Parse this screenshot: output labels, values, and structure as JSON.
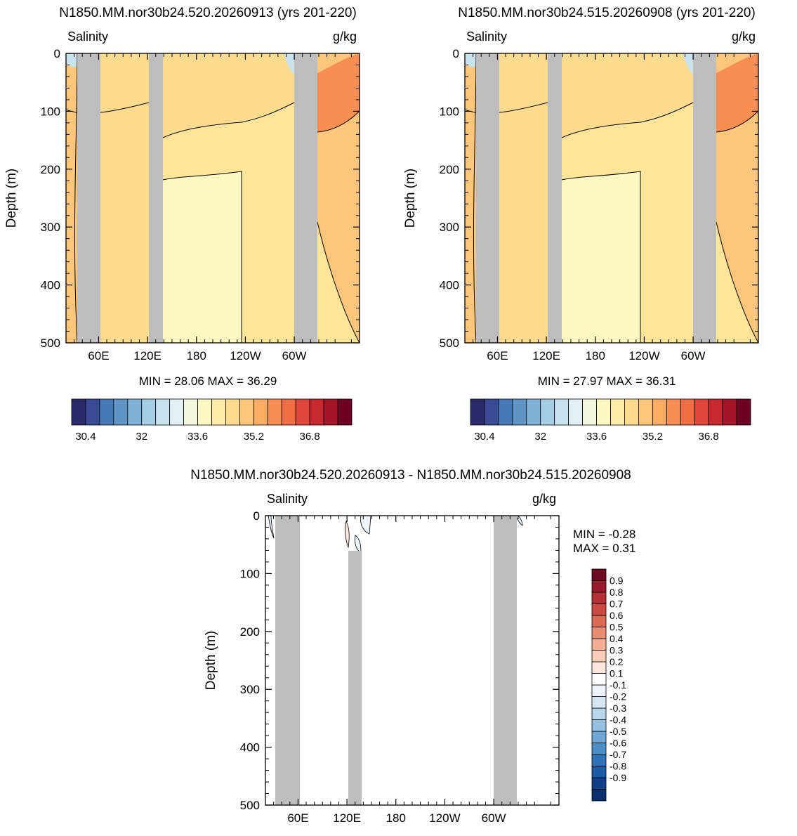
{
  "colors": {
    "land": "#bdbdbd",
    "contour": "#000000",
    "background": "#ffffff"
  },
  "abs_colorbar": {
    "colors": [
      "#2b2a6b",
      "#3a4a96",
      "#4877b8",
      "#5e95c6",
      "#7fb2d6",
      "#a5cde3",
      "#c9e4ef",
      "#e3f1f5",
      "#f3f8dc",
      "#fef8c2",
      "#feedaa",
      "#fddb8f",
      "#fdc67a",
      "#fcac63",
      "#f98e52",
      "#f16d43",
      "#e0473a",
      "#c8282f",
      "#a5162b",
      "#700023"
    ],
    "tick_labels": [
      "30.4",
      "32",
      "33.6",
      "35.2",
      "36.8"
    ]
  },
  "diff_colorbar": {
    "colors": [
      "#08306b",
      "#103e8a",
      "#1c5aa6",
      "#2f72b5",
      "#4b8ec5",
      "#6fa8d4",
      "#94c1e0",
      "#b8d6ea",
      "#d6e6f2",
      "#ecf3f9",
      "#ffffff",
      "#fde6dc",
      "#f9ccb8",
      "#f3ae93",
      "#e98e73",
      "#db6a55",
      "#ca4a42",
      "#b32e35",
      "#991a2c",
      "#6e0a20"
    ],
    "tick_labels": [
      "0.9",
      "0.8",
      "0.7",
      "0.6",
      "0.5",
      "0.4",
      "0.3",
      "0.2",
      "0.1",
      "-0.1",
      "-0.2",
      "-0.3",
      "-0.4",
      "-0.5",
      "-0.6",
      "-0.7",
      "-0.8",
      "-0.9"
    ]
  },
  "chart_data": [
    {
      "type": "heatmap",
      "title": "N1850.MM.nor30b24.520.20260913 (yrs 201-220)",
      "left_label": "Salinity",
      "right_label": "g/kg",
      "ylabel": "Depth (m)",
      "ylim": [
        0,
        500
      ],
      "y_reversed": true,
      "yticks": [
        "0",
        "100",
        "200",
        "300",
        "400",
        "500"
      ],
      "xtick_labels": [
        "60E",
        "120E",
        "180",
        "120W",
        "60W"
      ],
      "xlim_deg_east": [
        20,
        380
      ],
      "stats_text": "MIN =  28.06  MAX =  36.29",
      "min": 28.06,
      "max": 36.29,
      "colorbar": "abs"
    },
    {
      "type": "heatmap",
      "title": "N1850.MM.nor30b24.515.20260908 (yrs 201-220)",
      "left_label": "Salinity",
      "right_label": "g/kg",
      "ylabel": "Depth (m)",
      "ylim": [
        0,
        500
      ],
      "y_reversed": true,
      "yticks": [
        "0",
        "100",
        "200",
        "300",
        "400",
        "500"
      ],
      "xtick_labels": [
        "60E",
        "120E",
        "180",
        "120W",
        "60W"
      ],
      "xlim_deg_east": [
        20,
        380
      ],
      "stats_text": "MIN =  27.97  MAX =  36.31",
      "min": 27.97,
      "max": 36.31,
      "colorbar": "abs"
    },
    {
      "type": "heatmap",
      "title": "N1850.MM.nor30b24.520.20260913 - N1850.MM.nor30b24.515.20260908",
      "left_label": "Salinity",
      "right_label": "g/kg",
      "ylabel": "Depth (m)",
      "ylim": [
        0,
        500
      ],
      "y_reversed": true,
      "yticks": [
        "0",
        "100",
        "200",
        "300",
        "400",
        "500"
      ],
      "xtick_labels": [
        "60E",
        "120E",
        "180",
        "120W",
        "60W"
      ],
      "xlim_deg_east": [
        20,
        380
      ],
      "stats_min_text": "MIN =  -0.28",
      "stats_max_text": "MAX =    0.31",
      "min": -0.28,
      "max": 0.31,
      "colorbar": "diff"
    }
  ]
}
